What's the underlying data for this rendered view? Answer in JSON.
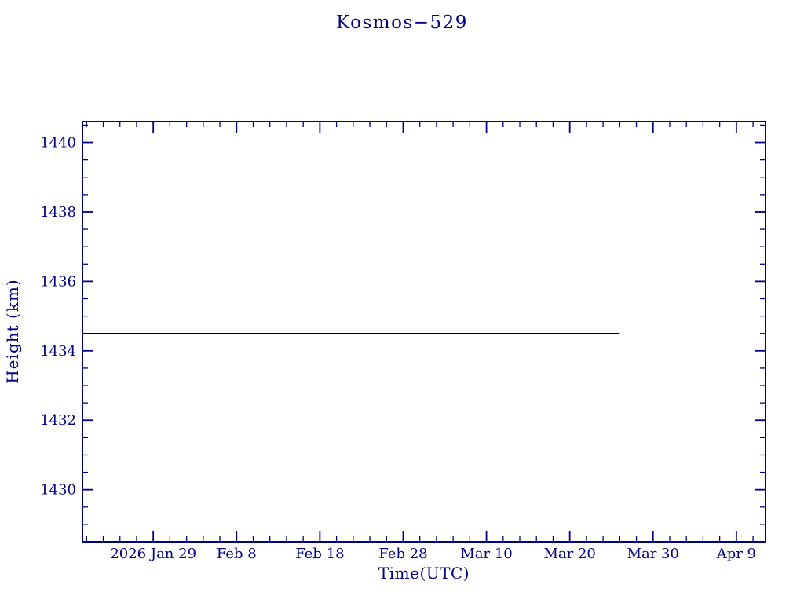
{
  "chart_data": {
    "type": "line",
    "title": "Kosmos−529",
    "xlabel": "Time(UTC)",
    "ylabel": "Height (km)",
    "axis_color": "#000080",
    "line_color": "#000000",
    "grid": false,
    "legend": false,
    "xlim": [
      20.5,
      102.5
    ],
    "ylim": [
      1428.5,
      1440.6
    ],
    "x_major_ticks": [
      {
        "value": 29,
        "label": "2026 Jan 29"
      },
      {
        "value": 39,
        "label": "Feb 8"
      },
      {
        "value": 49,
        "label": "Feb 18"
      },
      {
        "value": 59,
        "label": "Feb 28"
      },
      {
        "value": 69,
        "label": "Mar 10"
      },
      {
        "value": 79,
        "label": "Mar 20"
      },
      {
        "value": 89,
        "label": "Mar 30"
      },
      {
        "value": 99,
        "label": "Apr 9"
      }
    ],
    "x_minor_step": 2,
    "y_major_ticks": [
      {
        "value": 1430,
        "label": "1430"
      },
      {
        "value": 1432,
        "label": "1432"
      },
      {
        "value": 1434,
        "label": "1434"
      },
      {
        "value": 1436,
        "label": "1436"
      },
      {
        "value": 1438,
        "label": "1438"
      },
      {
        "value": 1440,
        "label": "1440"
      }
    ],
    "y_minor_step": 0.5,
    "series": [
      {
        "name": "height",
        "x": [
          20.5,
          85
        ],
        "y": [
          1434.5,
          1434.5
        ]
      }
    ]
  }
}
